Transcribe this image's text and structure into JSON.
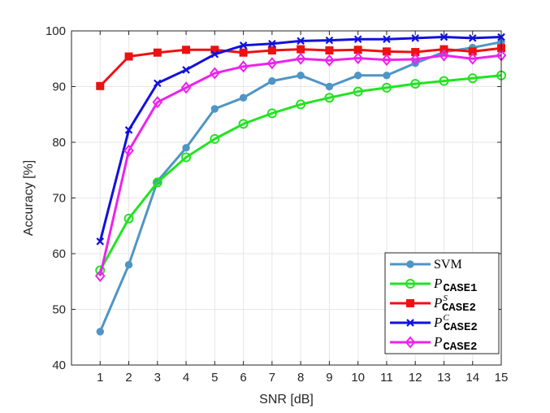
{
  "chart_data": {
    "type": "line",
    "xlabel": "SNR [dB]",
    "ylabel": "Accuracy [%]",
    "x": [
      1,
      2,
      3,
      4,
      5,
      6,
      7,
      8,
      9,
      10,
      11,
      12,
      13,
      14,
      15
    ],
    "xticks": [
      "1",
      "2",
      "3",
      "4",
      "5",
      "6",
      "7",
      "8",
      "9",
      "10",
      "11",
      "12",
      "13",
      "14",
      "15"
    ],
    "xlim": [
      0,
      15
    ],
    "ylim": [
      40,
      100
    ],
    "yticks": [
      "40",
      "50",
      "60",
      "70",
      "80",
      "90",
      "100"
    ],
    "grid": true,
    "legend_position": "bottom-right",
    "series": [
      {
        "name": "SVM",
        "legend": {
          "base": "SVM",
          "sub": "",
          "sup": ""
        },
        "marker": "circle-filled",
        "color": "#4f95c5",
        "values": [
          46,
          58,
          73,
          79,
          86,
          88,
          91,
          92,
          90,
          92,
          92,
          94.2,
          96.2,
          97,
          98
        ]
      },
      {
        "name": "P_CASE1",
        "legend": {
          "base": "P",
          "sub": "CASE1",
          "sup": ""
        },
        "marker": "circle-open",
        "color": "#22e322",
        "values": [
          57,
          66.3,
          72.8,
          77.3,
          80.6,
          83.3,
          85.2,
          86.8,
          88,
          89.1,
          89.8,
          90.5,
          91,
          91.5,
          92
        ]
      },
      {
        "name": "P^S_CASE2",
        "legend": {
          "base": "P",
          "sub": "CASE2",
          "sup": "S"
        },
        "marker": "square",
        "color": "#ee1111",
        "values": [
          90.1,
          95.4,
          96.1,
          96.6,
          96.6,
          96.1,
          96.5,
          96.7,
          96.5,
          96.6,
          96.3,
          96.2,
          96.7,
          96.3,
          96.9
        ]
      },
      {
        "name": "P^C_CASE2",
        "legend": {
          "base": "P",
          "sub": "CASE2",
          "sup": "C"
        },
        "marker": "x",
        "color": "#1111dd",
        "values": [
          62.2,
          82.2,
          90.6,
          93,
          95.8,
          97.4,
          97.7,
          98.2,
          98.3,
          98.5,
          98.5,
          98.7,
          98.9,
          98.7,
          98.9
        ]
      },
      {
        "name": "P_CASE2",
        "legend": {
          "base": "P",
          "sub": "CASE2",
          "sup": ""
        },
        "marker": "diamond",
        "color": "#ee22ee",
        "values": [
          56,
          78.5,
          87.2,
          89.8,
          92.4,
          93.6,
          94.2,
          95,
          94.7,
          95.1,
          94.8,
          94.9,
          95.6,
          95,
          95.6
        ]
      }
    ]
  }
}
